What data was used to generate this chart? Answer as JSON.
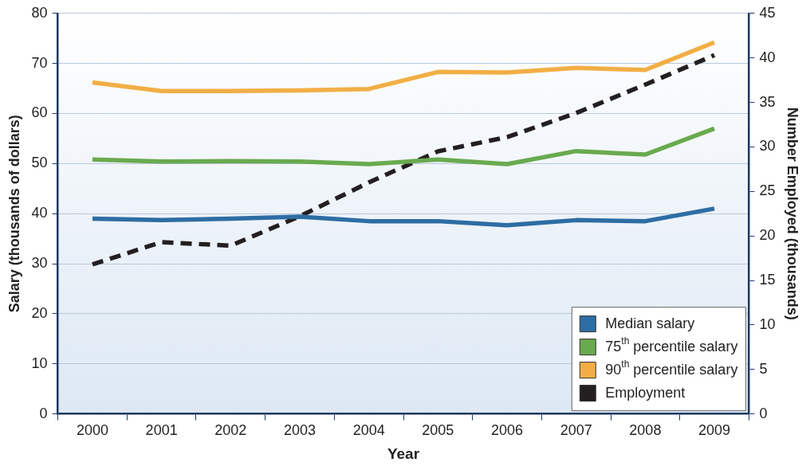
{
  "chart_data": {
    "type": "line",
    "xlabel": "Year",
    "ylabel": "Salary (thousands of dollars)",
    "y2label": "Number Employed (thousands)",
    "categories": [
      "2000",
      "2001",
      "2002",
      "2003",
      "2004",
      "2005",
      "2006",
      "2007",
      "2008",
      "2009"
    ],
    "ylim": [
      0,
      80
    ],
    "yticks": [
      0,
      10,
      20,
      30,
      40,
      50,
      60,
      70,
      80
    ],
    "y2lim": [
      0,
      45
    ],
    "y2ticks": [
      0,
      5,
      10,
      15,
      20,
      25,
      30,
      35,
      40,
      45
    ],
    "grid": "y",
    "legend": "bottom right",
    "marker": "none",
    "series": [
      {
        "name": "Median salary",
        "color": "#2e6da4",
        "values": [
          39.0,
          38.7,
          39.0,
          39.4,
          38.5,
          38.5,
          37.7,
          38.7,
          38.5,
          41.0
        ]
      },
      {
        "name": "75$^{th}$ percentile salary",
        "color": "#6aaa4f",
        "values": [
          50.8,
          50.4,
          50.5,
          50.4,
          49.9,
          50.8,
          49.9,
          52.5,
          51.8,
          57.0
        ]
      },
      {
        "name": "90$^{th}$ percentile salary",
        "color": "#f2ae45",
        "values": [
          66.2,
          64.5,
          64.5,
          64.6,
          64.9,
          68.3,
          68.2,
          69.1,
          68.7,
          74.2
        ]
      },
      {
        "name": "Employment",
        "color": "#231f20",
        "values": [
          16.8,
          19.3,
          18.9,
          22.2,
          26.0,
          29.5,
          31.1,
          33.8,
          37.0,
          40.3
        ],
        "axis": "y2",
        "line_style": "dashed"
      }
    ]
  }
}
